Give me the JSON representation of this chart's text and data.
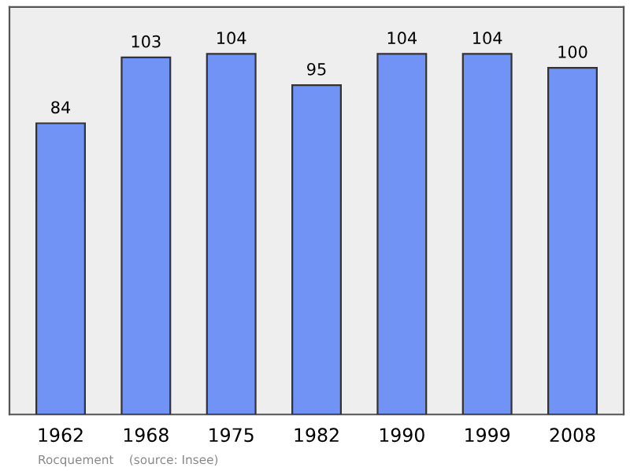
{
  "chart_data": {
    "type": "bar",
    "categories": [
      "1962",
      "1968",
      "1975",
      "1982",
      "1990",
      "1999",
      "2008"
    ],
    "values": [
      84,
      103,
      104,
      95,
      104,
      104,
      100
    ],
    "color": "#7093f5",
    "data_labels": true,
    "annotations": [
      "Rocquement    (source: Insee)"
    ]
  }
}
